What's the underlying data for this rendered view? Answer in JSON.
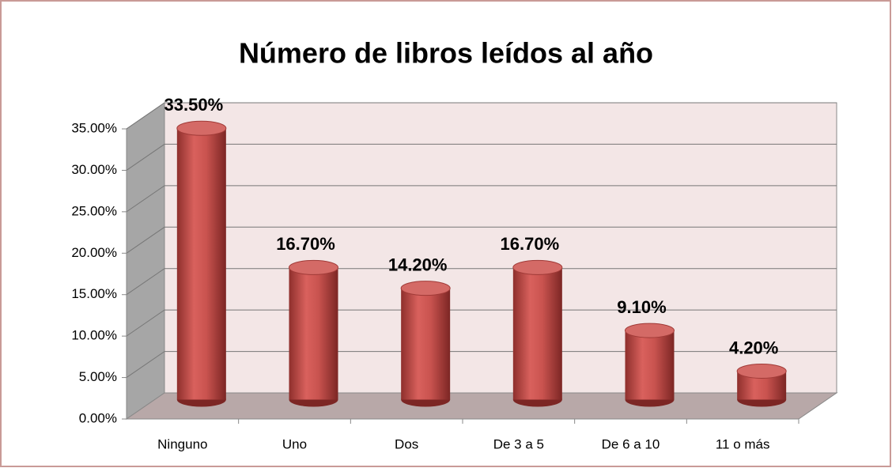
{
  "chart_data": {
    "type": "bar3d",
    "title": "Número de libros leídos al año",
    "categories": [
      "Ninguno",
      "Uno",
      "Dos",
      "De 3 a 5",
      "De 6 a 10",
      "11 o más"
    ],
    "values": [
      33.5,
      16.7,
      14.2,
      16.7,
      9.1,
      4.2
    ],
    "value_labels": [
      "33.50%",
      "16.70%",
      "14.20%",
      "16.70%",
      "9.10%",
      "4.20%"
    ],
    "color": "#c0504d",
    "ylim": [
      0,
      35
    ],
    "yticks": [
      {
        "value": 0,
        "label": "0.00%"
      },
      {
        "value": 5,
        "label": "5.00%"
      },
      {
        "value": 10,
        "label": "10.00%"
      },
      {
        "value": 15,
        "label": "15.00%"
      },
      {
        "value": 20,
        "label": "20.00%"
      },
      {
        "value": 25,
        "label": "25.00%"
      },
      {
        "value": 30,
        "label": "30.00%"
      },
      {
        "value": 35,
        "label": "35.00%"
      }
    ],
    "grid": true
  }
}
